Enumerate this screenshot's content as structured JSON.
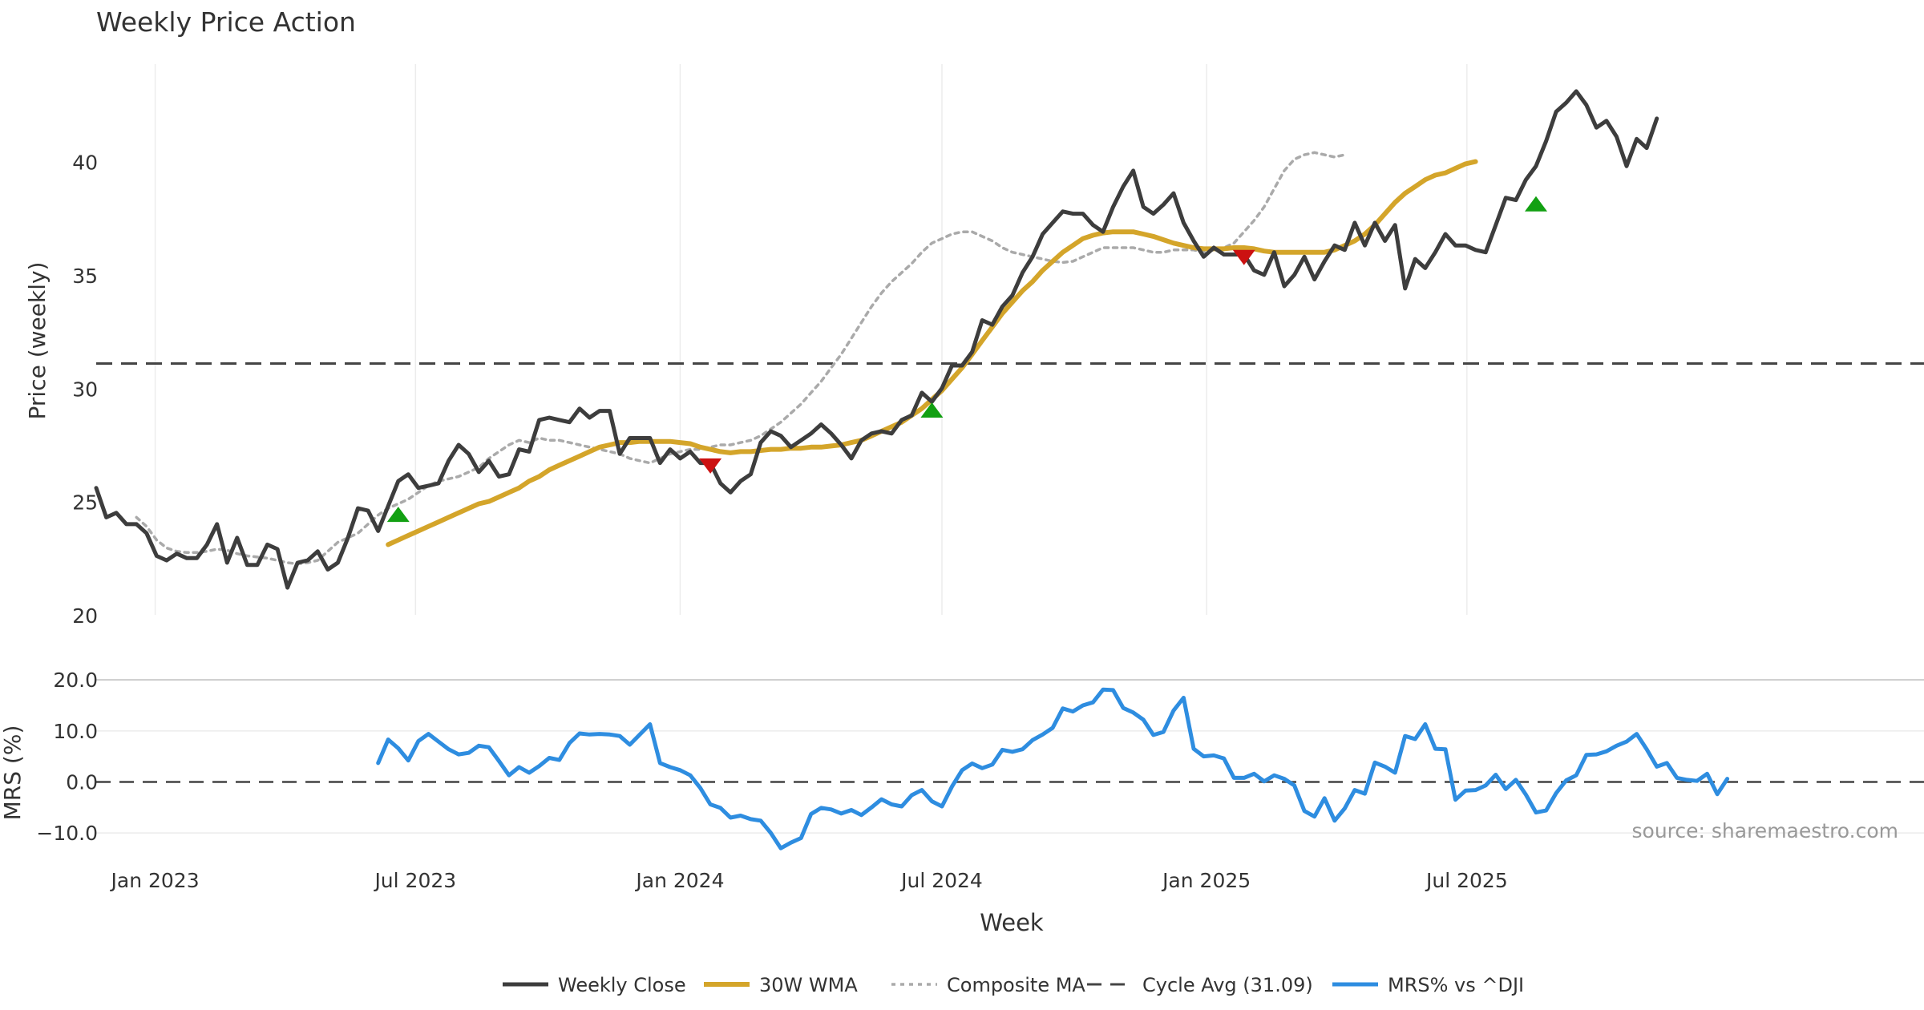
{
  "title": "Weekly Price Action",
  "source_note": "source: sharemaestro.com",
  "colors": {
    "close": "#3d3d3d",
    "wma": "#d4a52a",
    "composite": "#aaaaaa",
    "cycle": "#444444",
    "mrs": "#2e8de0",
    "buy": "#12a012",
    "sell": "#cc1111",
    "grid": "#ececec"
  },
  "chart_data": [
    {
      "type": "line",
      "name": "price-panel",
      "ylabel": "Price (weekly)",
      "xlabel": "",
      "ylim": [
        20,
        44.3
      ],
      "yticks": [
        20,
        25,
        30,
        35,
        40
      ],
      "grid": true,
      "x_start": "2022-11-21",
      "x_end": "2025-11-17",
      "cycle_avg": 31.09,
      "series": [
        {
          "name": "Weekly Close",
          "values": [
            25.6,
            24.3,
            24.5,
            24.0,
            24.0,
            23.6,
            22.6,
            22.4,
            22.7,
            22.5,
            22.5,
            23.1,
            24.0,
            22.3,
            23.4,
            22.2,
            22.2,
            23.1,
            22.9,
            21.2,
            22.3,
            22.4,
            22.8,
            22.0,
            22.3,
            23.4,
            24.7,
            24.6,
            23.7,
            24.8,
            25.9,
            26.2,
            25.6,
            25.7,
            25.8,
            26.8,
            27.5,
            27.1,
            26.3,
            26.8,
            26.1,
            26.2,
            27.3,
            27.2,
            28.6,
            28.7,
            28.6,
            28.5,
            29.1,
            28.7,
            29.0,
            29.0,
            27.1,
            27.8,
            27.8,
            27.8,
            26.7,
            27.3,
            26.9,
            27.2,
            26.7,
            26.7,
            25.8,
            25.4,
            25.9,
            26.2,
            27.6,
            28.1,
            27.9,
            27.4,
            27.7,
            28.0,
            28.4,
            28.0,
            27.5,
            26.9,
            27.7,
            28.0,
            28.1,
            28.0,
            28.6,
            28.8,
            29.8,
            29.4,
            30.0,
            31.0,
            31.0,
            31.6,
            33.0,
            32.8,
            33.6,
            34.1,
            35.1,
            35.8,
            36.8,
            37.3,
            37.8,
            37.7,
            37.7,
            37.2,
            36.9,
            38.0,
            38.9,
            39.6,
            38.0,
            37.7,
            38.1,
            38.6,
            37.3,
            36.5,
            35.8,
            36.2,
            35.9,
            35.9,
            35.9,
            35.2,
            35.0,
            36.0,
            34.5,
            35.0,
            35.8,
            34.8,
            35.6,
            36.3,
            36.1,
            37.3,
            36.3,
            37.3,
            36.5,
            37.2,
            34.4,
            35.7,
            35.3,
            36.0,
            36.8,
            36.3,
            36.3,
            36.1,
            36.0,
            37.2,
            38.4,
            38.3,
            39.2,
            39.8,
            40.9,
            42.2,
            42.6,
            43.1,
            42.5,
            41.5,
            41.8,
            41.1,
            39.8,
            41.0,
            40.6,
            41.9
          ]
        },
        {
          "name": "30W WMA",
          "start_index": 29,
          "values": [
            23.1,
            23.3,
            23.5,
            23.7,
            23.9,
            24.1,
            24.3,
            24.5,
            24.7,
            24.9,
            25.0,
            25.2,
            25.4,
            25.6,
            25.9,
            26.1,
            26.4,
            26.6,
            26.8,
            27.0,
            27.2,
            27.4,
            27.5,
            27.6,
            27.6,
            27.65,
            27.65,
            27.65,
            27.65,
            27.6,
            27.55,
            27.4,
            27.3,
            27.2,
            27.15,
            27.2,
            27.2,
            27.25,
            27.3,
            27.3,
            27.35,
            27.35,
            27.4,
            27.4,
            27.45,
            27.5,
            27.6,
            27.7,
            27.9,
            28.1,
            28.3,
            28.5,
            28.8,
            29.1,
            29.5,
            29.9,
            30.4,
            30.9,
            31.5,
            32.1,
            32.7,
            33.3,
            33.8,
            34.3,
            34.7,
            35.2,
            35.6,
            36.0,
            36.3,
            36.6,
            36.75,
            36.85,
            36.9,
            36.9,
            36.9,
            36.8,
            36.7,
            36.55,
            36.4,
            36.3,
            36.2,
            36.15,
            36.15,
            36.15,
            36.2,
            36.2,
            36.15,
            36.05,
            36.0,
            36.0,
            36.0,
            36.0,
            36.0,
            36.0,
            36.1,
            36.3,
            36.5,
            36.8,
            37.2,
            37.7,
            38.2,
            38.6,
            38.9,
            39.2,
            39.4,
            39.5,
            39.7,
            39.9,
            40.0
          ]
        },
        {
          "name": "Composite MA",
          "start_index": 4,
          "values": [
            24.3,
            23.9,
            23.3,
            22.95,
            22.8,
            22.75,
            22.75,
            22.8,
            22.9,
            22.85,
            22.7,
            22.6,
            22.55,
            22.5,
            22.4,
            22.3,
            22.25,
            22.3,
            22.4,
            22.8,
            23.2,
            23.4,
            23.6,
            24.0,
            24.4,
            24.7,
            24.9,
            25.1,
            25.4,
            25.7,
            25.9,
            26.0,
            26.1,
            26.3,
            26.5,
            26.9,
            27.2,
            27.5,
            27.7,
            27.6,
            27.8,
            27.7,
            27.7,
            27.6,
            27.5,
            27.4,
            27.3,
            27.2,
            27.1,
            26.9,
            26.8,
            26.7,
            26.9,
            27.1,
            27.2,
            27.3,
            27.3,
            27.4,
            27.5,
            27.5,
            27.6,
            27.7,
            27.9,
            28.2,
            28.5,
            28.9,
            29.3,
            29.8,
            30.3,
            30.9,
            31.5,
            32.2,
            32.9,
            33.6,
            34.2,
            34.7,
            35.1,
            35.5,
            36.0,
            36.4,
            36.6,
            36.8,
            36.9,
            36.9,
            36.7,
            36.5,
            36.2,
            36.0,
            35.9,
            35.8,
            35.7,
            35.6,
            35.55,
            35.6,
            35.8,
            36.0,
            36.2,
            36.2,
            36.2,
            36.2,
            36.1,
            36.0,
            36.0,
            36.1,
            36.1,
            36.1,
            36.0,
            36.1,
            36.2,
            36.4,
            36.9,
            37.4,
            38.0,
            38.8,
            39.6,
            40.1,
            40.3,
            40.4,
            40.3,
            40.2,
            40.3
          ]
        }
      ],
      "markers": [
        {
          "type": "buy",
          "date": "2023-06-19",
          "value": 24.4
        },
        {
          "type": "sell",
          "date": "2024-01-22",
          "value": 26.6
        },
        {
          "type": "buy",
          "date": "2024-06-24",
          "value": 29.0
        },
        {
          "type": "sell",
          "date": "2025-01-27",
          "value": 35.8
        },
        {
          "type": "buy",
          "date": "2025-08-18",
          "value": 38.1
        }
      ],
      "annotation": "Cycle Avg (31.09)"
    },
    {
      "type": "line",
      "name": "mrs-panel",
      "ylabel": "MRS (%)",
      "xlabel": "Week",
      "ylim": [
        -12.5,
        20.5
      ],
      "yticks": [
        20.0,
        10.0,
        0.0,
        -10.0
      ],
      "ytick_labels": [
        "20.0",
        "10.0",
        "0.0",
        "−10.0"
      ],
      "xticks": [
        "2023-01-01",
        "2023-07-01",
        "2024-01-01",
        "2024-07-01",
        "2025-01-01",
        "2025-07-01"
      ],
      "xtick_labels": [
        "Jan 2023",
        "Jul 2023",
        "Jan 2024",
        "Jul 2024",
        "Jan 2025",
        "Jul 2025"
      ],
      "series": [
        {
          "name": "MRS% vs ^DJI",
          "start_index": 28,
          "values": [
            3.7,
            8.3,
            6.6,
            4.2,
            8.0,
            9.4,
            7.9,
            6.4,
            5.4,
            5.7,
            7.1,
            6.8,
            4.1,
            1.3,
            2.9,
            1.8,
            3.1,
            4.7,
            4.3,
            7.6,
            9.5,
            9.3,
            9.4,
            9.3,
            9.0,
            7.3,
            9.3,
            11.3,
            3.7,
            2.9,
            2.3,
            1.3,
            -1.2,
            -4.4,
            -5.1,
            -7.0,
            -6.6,
            -7.3,
            -7.6,
            -10.0,
            -13.0,
            -11.9,
            -11.0,
            -6.3,
            -5.1,
            -5.4,
            -6.2,
            -5.5,
            -6.5,
            -5.0,
            -3.4,
            -4.4,
            -4.8,
            -2.6,
            -1.6,
            -3.8,
            -4.8,
            -0.9,
            2.3,
            3.6,
            2.7,
            3.4,
            6.3,
            5.9,
            6.4,
            8.2,
            9.3,
            10.6,
            14.4,
            13.8,
            15.0,
            15.6,
            18.1,
            18.0,
            14.5,
            13.6,
            12.2,
            9.2,
            9.8,
            14.0,
            16.5,
            6.5,
            5.0,
            5.2,
            4.6,
            0.8,
            0.8,
            1.6,
            0.1,
            1.3,
            0.6,
            -0.7,
            -5.7,
            -6.8,
            -3.2,
            -7.6,
            -5.2,
            -1.6,
            -2.3,
            3.8,
            3.0,
            1.8,
            9.0,
            8.4,
            11.3,
            6.5,
            6.4,
            -3.5,
            -1.7,
            -1.6,
            -0.7,
            1.4,
            -1.4,
            0.4,
            -2.5,
            -6.0,
            -5.6,
            -2.2,
            0.3,
            1.3,
            5.3,
            5.4,
            6.0,
            7.1,
            7.9,
            9.4,
            6.4,
            3.0,
            3.7,
            0.8,
            0.4,
            0.2,
            1.6,
            -2.4,
            0.6
          ]
        }
      ]
    }
  ],
  "legend": {
    "items": [
      {
        "label": "Weekly Close"
      },
      {
        "label": "30W WMA"
      },
      {
        "label": "Composite MA"
      },
      {
        "label": "Cycle Avg (31.09)"
      },
      {
        "label": "MRS% vs ^DJI"
      }
    ]
  }
}
